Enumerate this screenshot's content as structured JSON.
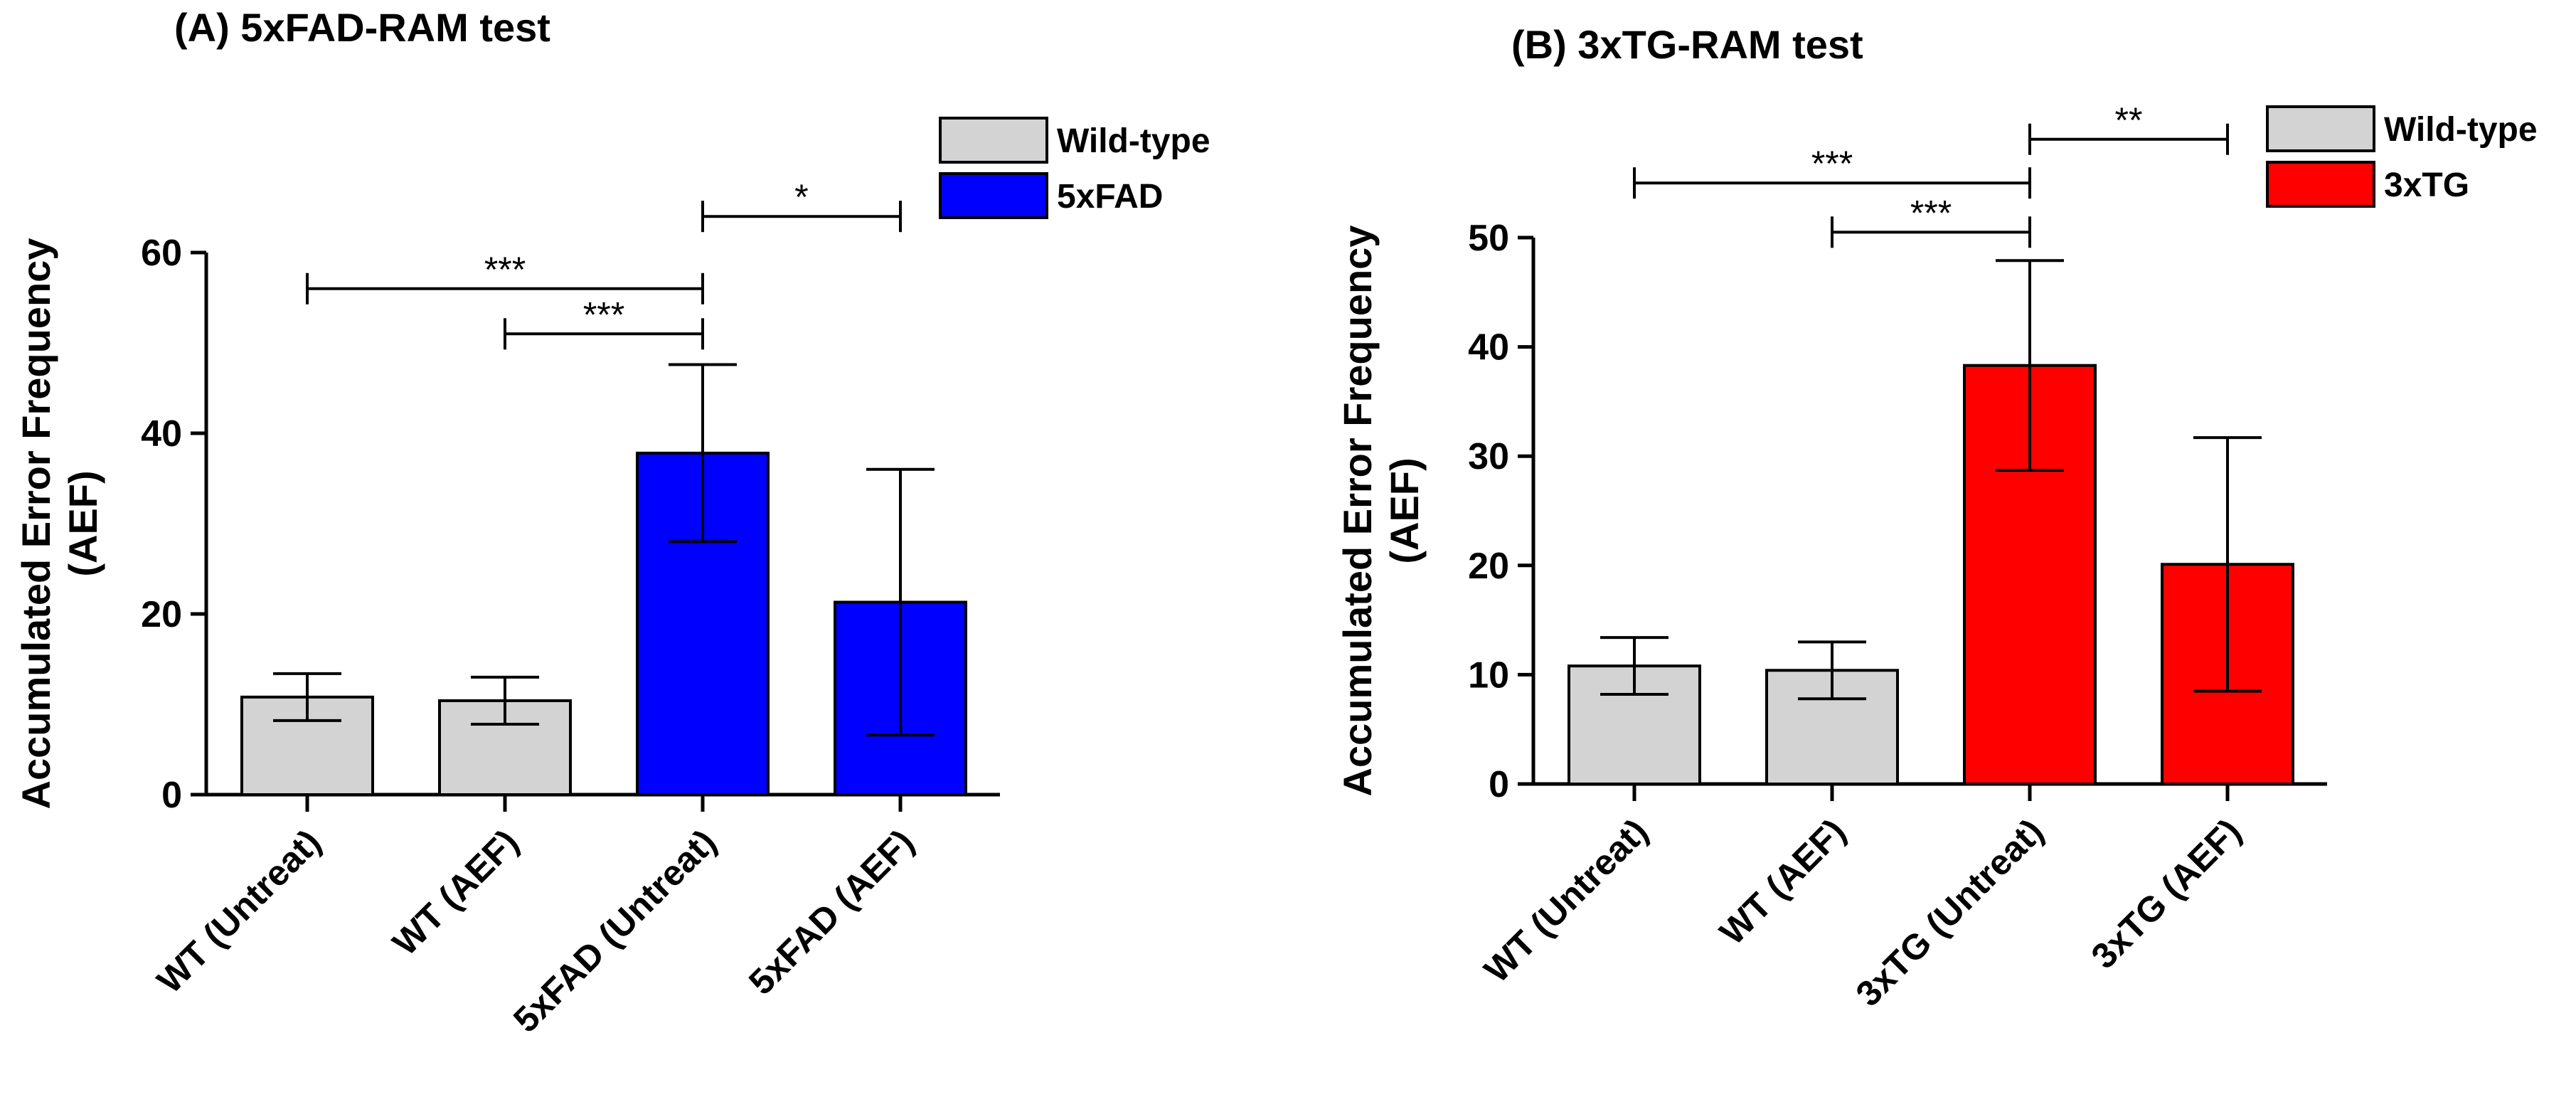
{
  "chart_data": [
    {
      "type": "bar",
      "title": "(A) 5xFAD-RAM test",
      "ylabel": "Accumulated Error Frequency (AEF)",
      "ylabel_lines": [
        "Accumulated Error Frequency",
        "(AEF)"
      ],
      "xlabel": "",
      "ylim": [
        0,
        60
      ],
      "yticks": [
        0,
        20,
        40,
        60
      ],
      "categories": [
        "WT (Untreat)",
        "WT (AEF)",
        "5xFAD (Untreat)",
        "5xFAD (AEF)"
      ],
      "values": [
        10.8,
        10.4,
        37.8,
        21.3
      ],
      "errors": [
        2.6,
        2.6,
        9.8,
        14.7
      ],
      "bar_groups": [
        "Wild-type",
        "Wild-type",
        "5xFAD",
        "5xFAD"
      ],
      "legend": [
        {
          "label": "Wild-type",
          "color": "#d3d3d3"
        },
        {
          "label": "5xFAD",
          "color": "#0000ff"
        }
      ],
      "legend_position": "top-right",
      "significance": [
        {
          "from": 0,
          "to": 2,
          "label": "***",
          "y": 56
        },
        {
          "from": 1,
          "to": 2,
          "label": "***",
          "y": 51
        },
        {
          "from": 2,
          "to": 3,
          "label": "*",
          "y": 64
        }
      ]
    },
    {
      "type": "bar",
      "title": "(B) 3xTG-RAM test",
      "ylabel": "Accumulated Error Frequency (AEF)",
      "ylabel_lines": [
        "Accumulated Error Frequency",
        "(AEF)"
      ],
      "xlabel": "",
      "ylim": [
        0,
        50
      ],
      "yticks": [
        0,
        10,
        20,
        30,
        40,
        50
      ],
      "categories": [
        "WT (Untreat)",
        "WT (AEF)",
        "3xTG (Untreat)",
        "3xTG (AEF)"
      ],
      "values": [
        10.8,
        10.4,
        38.3,
        20.1
      ],
      "errors": [
        2.6,
        2.6,
        9.6,
        11.6
      ],
      "bar_groups": [
        "Wild-type",
        "Wild-type",
        "3xTG",
        "3xTG"
      ],
      "legend": [
        {
          "label": "Wild-type",
          "color": "#d3d3d3"
        },
        {
          "label": "3xTG",
          "color": "#ff0000"
        }
      ],
      "legend_position": "top-right",
      "significance": [
        {
          "from": 0,
          "to": 2,
          "label": "***",
          "y": 55
        },
        {
          "from": 1,
          "to": 2,
          "label": "***",
          "y": 50.5
        },
        {
          "from": 2,
          "to": 3,
          "label": "**",
          "y": 59
        }
      ]
    }
  ]
}
